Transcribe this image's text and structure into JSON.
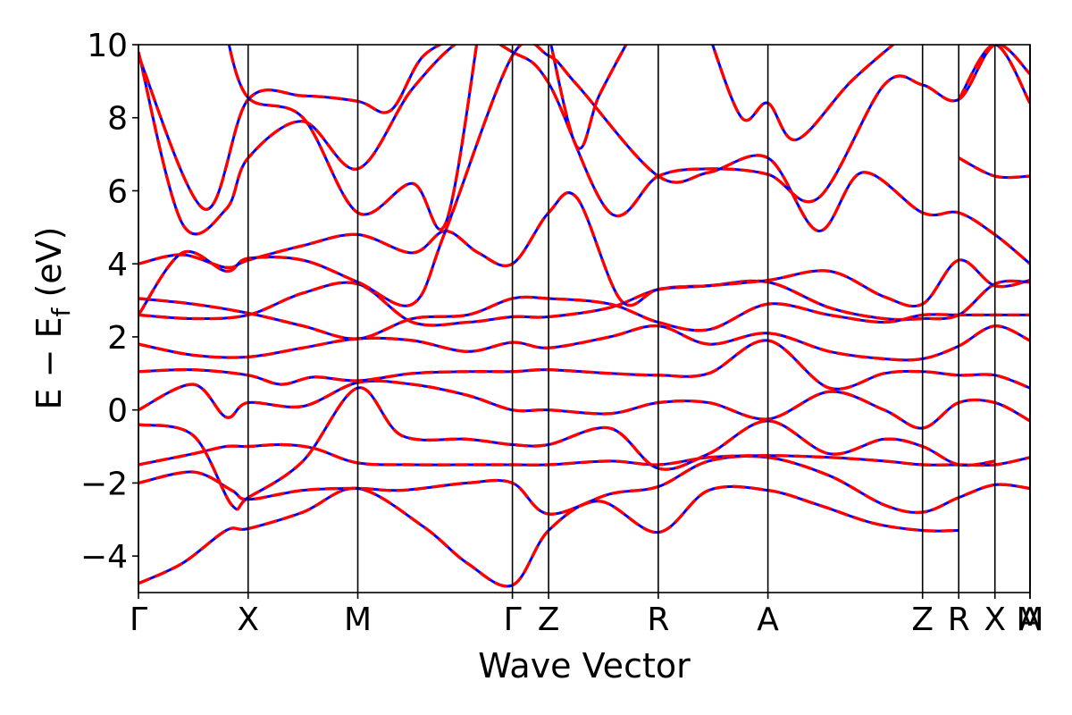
{
  "chart_data": {
    "type": "line",
    "title": "",
    "xlabel": "Wave Vector",
    "ylabel": "E − E",
    "ylabel_sub": "f",
    "ylabel_unit": " (eV)",
    "ylim": [
      -5,
      10
    ],
    "y_ticks": [
      -4,
      -2,
      0,
      2,
      4,
      6,
      8,
      10
    ],
    "y_tick_labels": [
      "−4",
      "−2",
      "0",
      "2",
      "4",
      "6",
      "8",
      "10"
    ],
    "k_points": [
      {
        "label": "Γ",
        "x": 0.0
      },
      {
        "label": "X",
        "x": 1.0
      },
      {
        "label": "M",
        "x": 2.0
      },
      {
        "label": "Γ",
        "x": 3.41
      },
      {
        "label": "Z",
        "x": 3.74
      },
      {
        "label": "R",
        "x": 4.74
      },
      {
        "label": "A",
        "x": 5.74
      },
      {
        "label": "Z",
        "x": 7.15
      },
      {
        "label": "R",
        "x": 7.48
      },
      {
        "label": "X",
        "x": 7.81
      },
      {
        "label": "M",
        "x": 8.13
      },
      {
        "label": "A",
        "x": 8.13
      }
    ],
    "xlim": [
      0,
      8.13
    ],
    "grid": false,
    "legend": "none",
    "series_colors": {
      "primary": "#ff0000",
      "overlay": "#0000ff"
    },
    "series": [
      {
        "values": [
          [
            0,
            -4.75
          ],
          [
            0.4,
            -4.2
          ],
          [
            0.8,
            -3.3
          ],
          [
            1.0,
            -3.25
          ],
          [
            1.5,
            -2.8
          ],
          [
            2.0,
            -2.15
          ],
          [
            2.6,
            -3.2
          ],
          [
            3.0,
            -4.2
          ],
          [
            3.41,
            -4.8
          ],
          [
            3.74,
            -3.3
          ],
          [
            4.2,
            -2.5
          ],
          [
            4.74,
            -3.35
          ],
          [
            5.2,
            -2.2
          ],
          [
            5.74,
            -2.2
          ],
          [
            6.2,
            -2.6
          ],
          [
            6.7,
            -3.1
          ],
          [
            7.15,
            -3.3
          ],
          [
            7.48,
            -3.3
          ]
        ]
      },
      {
        "values": [
          [
            0,
            -2.0
          ],
          [
            0.5,
            -1.7
          ],
          [
            0.85,
            -2.2
          ],
          [
            1.0,
            -2.45
          ],
          [
            1.5,
            -2.2
          ],
          [
            2.0,
            -2.15
          ],
          [
            2.4,
            -2.2
          ],
          [
            3.0,
            -2.0
          ],
          [
            3.41,
            -2.0
          ],
          [
            3.74,
            -2.85
          ],
          [
            4.3,
            -2.3
          ],
          [
            4.74,
            -2.1
          ],
          [
            5.2,
            -1.4
          ],
          [
            5.74,
            -1.3
          ],
          [
            6.3,
            -1.8
          ],
          [
            6.8,
            -2.6
          ],
          [
            7.15,
            -2.8
          ],
          [
            7.48,
            -2.4
          ],
          [
            7.81,
            -2.05
          ],
          [
            8.13,
            -2.15
          ]
        ]
      },
      {
        "values": [
          [
            0,
            -1.5
          ],
          [
            0.5,
            -1.2
          ],
          [
            0.8,
            -1.0
          ],
          [
            1.0,
            -1.0
          ],
          [
            1.3,
            -0.95
          ],
          [
            1.6,
            -1.05
          ],
          [
            2.0,
            -1.45
          ],
          [
            2.5,
            -1.5
          ],
          [
            3.0,
            -1.5
          ],
          [
            3.41,
            -1.5
          ],
          [
            3.74,
            -1.5
          ],
          [
            4.3,
            -1.4
          ],
          [
            4.74,
            -1.5
          ],
          [
            5.2,
            -1.3
          ],
          [
            5.74,
            -1.25
          ],
          [
            6.3,
            -1.3
          ],
          [
            6.8,
            -1.4
          ],
          [
            7.15,
            -1.5
          ],
          [
            7.48,
            -1.5
          ],
          [
            7.81,
            -1.5
          ],
          [
            8.13,
            -1.3
          ]
        ]
      },
      {
        "values": [
          [
            0,
            -0.4
          ],
          [
            0.5,
            -0.7
          ],
          [
            0.85,
            -2.6
          ],
          [
            1.0,
            -2.4
          ],
          [
            1.5,
            -1.4
          ],
          [
            2.0,
            0.6
          ],
          [
            2.4,
            -0.7
          ],
          [
            3.0,
            -0.8
          ],
          [
            3.41,
            -0.95
          ],
          [
            3.74,
            -0.95
          ],
          [
            4.3,
            -0.5
          ],
          [
            4.74,
            -1.6
          ],
          [
            5.2,
            -1.2
          ],
          [
            5.74,
            -0.3
          ],
          [
            6.3,
            -1.2
          ],
          [
            6.8,
            -0.8
          ],
          [
            7.15,
            -1.0
          ],
          [
            7.48,
            -1.5
          ],
          [
            7.81,
            -1.4
          ]
        ]
      },
      {
        "values": [
          [
            0,
            0.0
          ],
          [
            0.5,
            0.7
          ],
          [
            0.8,
            -0.2
          ],
          [
            1.0,
            0.2
          ],
          [
            1.5,
            0.1
          ],
          [
            2.0,
            0.75
          ],
          [
            2.5,
            0.7
          ],
          [
            3.0,
            0.4
          ],
          [
            3.41,
            0.0
          ],
          [
            3.74,
            0.0
          ],
          [
            4.3,
            -0.1
          ],
          [
            4.74,
            0.2
          ],
          [
            5.2,
            0.2
          ],
          [
            5.74,
            -0.25
          ],
          [
            6.3,
            0.5
          ],
          [
            6.8,
            0.0
          ],
          [
            7.15,
            -0.5
          ],
          [
            7.48,
            0.2
          ],
          [
            7.81,
            0.2
          ],
          [
            8.13,
            -0.3
          ]
        ]
      },
      {
        "values": [
          [
            0,
            1.05
          ],
          [
            0.5,
            1.1
          ],
          [
            1.0,
            0.95
          ],
          [
            1.3,
            0.7
          ],
          [
            1.6,
            0.9
          ],
          [
            2.0,
            0.8
          ],
          [
            2.5,
            1.0
          ],
          [
            3.0,
            1.05
          ],
          [
            3.41,
            1.05
          ],
          [
            3.74,
            1.1
          ],
          [
            4.3,
            1.0
          ],
          [
            4.74,
            0.95
          ],
          [
            5.2,
            1.0
          ],
          [
            5.74,
            1.9
          ],
          [
            6.3,
            0.6
          ],
          [
            6.8,
            1.0
          ],
          [
            7.15,
            1.05
          ],
          [
            7.48,
            0.95
          ],
          [
            7.81,
            0.95
          ],
          [
            8.13,
            0.6
          ]
        ]
      },
      {
        "values": [
          [
            0,
            1.8
          ],
          [
            0.5,
            1.5
          ],
          [
            1.0,
            1.45
          ],
          [
            1.5,
            1.7
          ],
          [
            2.0,
            1.95
          ],
          [
            2.5,
            1.9
          ],
          [
            3.0,
            1.6
          ],
          [
            3.41,
            1.85
          ],
          [
            3.74,
            1.7
          ],
          [
            4.3,
            2.0
          ],
          [
            4.74,
            2.3
          ],
          [
            5.2,
            1.8
          ],
          [
            5.74,
            2.1
          ],
          [
            6.3,
            1.6
          ],
          [
            6.8,
            1.4
          ],
          [
            7.15,
            1.4
          ],
          [
            7.48,
            1.75
          ],
          [
            7.81,
            2.3
          ],
          [
            8.13,
            1.9
          ]
        ]
      },
      {
        "values": [
          [
            0,
            2.6
          ],
          [
            0.5,
            2.5
          ],
          [
            1.0,
            2.6
          ],
          [
            1.5,
            3.2
          ],
          [
            2.0,
            3.45
          ],
          [
            2.5,
            2.4
          ],
          [
            3.0,
            2.4
          ],
          [
            3.41,
            2.55
          ],
          [
            3.74,
            2.55
          ],
          [
            4.3,
            2.8
          ],
          [
            4.74,
            3.3
          ],
          [
            5.2,
            3.4
          ],
          [
            5.74,
            3.5
          ],
          [
            6.3,
            2.8
          ],
          [
            6.8,
            2.5
          ],
          [
            7.15,
            2.5
          ],
          [
            7.48,
            2.6
          ],
          [
            7.81,
            3.45
          ],
          [
            8.13,
            3.5
          ]
        ]
      },
      {
        "values": [
          [
            0,
            3.05
          ],
          [
            0.5,
            2.9
          ],
          [
            1.0,
            2.65
          ],
          [
            1.5,
            2.3
          ],
          [
            2.0,
            1.95
          ],
          [
            2.5,
            2.5
          ],
          [
            3.0,
            2.6
          ],
          [
            3.41,
            3.05
          ],
          [
            3.74,
            3.05
          ],
          [
            4.3,
            2.9
          ],
          [
            4.74,
            2.4
          ],
          [
            5.2,
            2.2
          ],
          [
            5.74,
            2.9
          ],
          [
            6.3,
            2.6
          ],
          [
            6.8,
            2.4
          ],
          [
            7.15,
            2.6
          ],
          [
            7.48,
            2.6
          ],
          [
            7.81,
            2.6
          ],
          [
            8.13,
            2.6
          ]
        ]
      },
      {
        "values": [
          [
            0,
            4.0
          ],
          [
            0.4,
            4.25
          ],
          [
            0.8,
            3.9
          ],
          [
            1.0,
            4.1
          ],
          [
            1.5,
            4.5
          ],
          [
            2.0,
            4.8
          ],
          [
            2.5,
            4.3
          ],
          [
            2.8,
            4.9
          ],
          [
            3.1,
            4.3
          ],
          [
            3.41,
            4.0
          ],
          [
            3.74,
            5.4
          ],
          [
            4.0,
            5.8
          ],
          [
            4.4,
            3.0
          ],
          [
            4.74,
            3.3
          ],
          [
            5.2,
            3.4
          ],
          [
            5.74,
            3.55
          ],
          [
            6.3,
            3.8
          ],
          [
            6.8,
            3.1
          ],
          [
            7.15,
            2.9
          ],
          [
            7.48,
            4.1
          ],
          [
            7.81,
            3.4
          ],
          [
            8.13,
            3.55
          ]
        ]
      },
      {
        "values": [
          [
            0,
            2.6
          ],
          [
            0.4,
            4.3
          ],
          [
            0.8,
            3.8
          ],
          [
            1.0,
            4.15
          ],
          [
            1.5,
            4.1
          ],
          [
            2.0,
            3.5
          ],
          [
            2.5,
            2.9
          ],
          [
            2.8,
            4.9
          ],
          [
            3.41,
            9.7
          ],
          [
            3.74,
            9.7
          ],
          [
            4.0,
            8.9
          ],
          [
            4.74,
            6.4
          ],
          [
            5.2,
            6.5
          ],
          [
            5.74,
            6.9
          ],
          [
            6.2,
            4.9
          ],
          [
            6.6,
            6.5
          ],
          [
            7.15,
            5.4
          ],
          [
            7.48,
            5.4
          ],
          [
            7.81,
            4.8
          ],
          [
            8.13,
            4.0
          ]
        ]
      },
      {
        "values": [
          [
            0,
            9.8
          ],
          [
            0.4,
            5.1
          ],
          [
            0.8,
            5.5
          ],
          [
            1.0,
            6.9
          ],
          [
            1.5,
            7.9
          ],
          [
            2.0,
            6.6
          ],
          [
            2.5,
            8.8
          ],
          [
            3.0,
            10.2
          ],
          [
            3.41,
            9.8
          ],
          [
            3.74,
            8.95
          ],
          [
            4.3,
            5.4
          ],
          [
            4.74,
            6.4
          ],
          [
            5.2,
            6.6
          ],
          [
            5.74,
            6.45
          ],
          [
            6.2,
            5.8
          ],
          [
            6.8,
            8.9
          ],
          [
            7.15,
            8.9
          ],
          [
            7.48,
            8.5
          ],
          [
            7.81,
            10.0
          ],
          [
            8.13,
            9.2
          ]
        ]
      },
      {
        "values": [
          [
            0,
            9.7
          ],
          [
            0.6,
            5.5
          ],
          [
            1.0,
            8.5
          ],
          [
            1.5,
            8.6
          ],
          [
            2.0,
            8.45
          ],
          [
            2.3,
            8.2
          ],
          [
            2.6,
            9.7
          ],
          [
            3.0,
            10.3
          ]
        ]
      },
      {
        "values": [
          [
            0.8,
            10.3
          ],
          [
            1.0,
            8.55
          ],
          [
            1.5,
            8.0
          ],
          [
            2.0,
            5.4
          ],
          [
            2.5,
            6.2
          ],
          [
            2.8,
            5.1
          ],
          [
            3.1,
            10.3
          ]
        ]
      },
      {
        "values": [
          [
            3.74,
            10.3
          ],
          [
            4.0,
            7.2
          ],
          [
            4.2,
            8.6
          ],
          [
            4.5,
            10.3
          ]
        ]
      },
      {
        "values": [
          [
            5.2,
            10.3
          ],
          [
            5.5,
            8.0
          ],
          [
            5.74,
            8.4
          ],
          [
            6.0,
            7.4
          ],
          [
            6.5,
            9.0
          ],
          [
            7.0,
            10.3
          ]
        ]
      },
      {
        "values": [
          [
            7.48,
            6.9
          ],
          [
            7.81,
            6.4
          ],
          [
            8.13,
            6.4
          ]
        ]
      },
      {
        "values": [
          [
            7.48,
            8.5
          ],
          [
            7.81,
            10.0
          ],
          [
            8.13,
            8.4
          ]
        ]
      }
    ]
  }
}
